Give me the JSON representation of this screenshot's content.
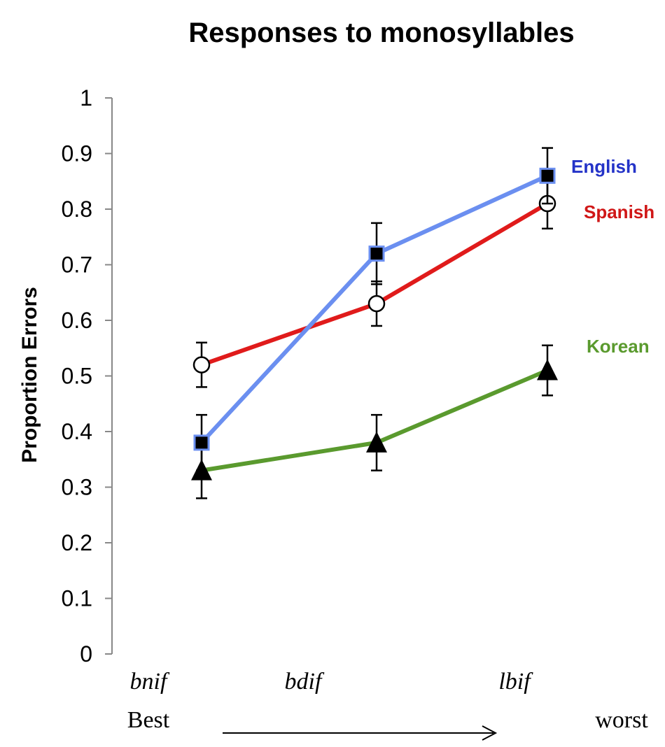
{
  "chart_data": {
    "type": "line",
    "title": "Responses to monosyllables",
    "ylabel": "Proportion Errors",
    "xlabel": "",
    "ylim": [
      0,
      1
    ],
    "yticks": [
      "0",
      "0.1",
      "0.2",
      "0.3",
      "0.4",
      "0.5",
      "0.6",
      "0.7",
      "0.8",
      "0.9",
      "1"
    ],
    "categories": [
      "bnif",
      "bdif",
      "lbif"
    ],
    "x_extremes": {
      "left": "Best",
      "right": "worst"
    },
    "grid": false,
    "series": [
      {
        "name": "English",
        "color": "#6b8ff0",
        "label_color": "#2433c8",
        "marker": "square",
        "values": [
          0.38,
          0.72,
          0.86
        ],
        "error": [
          0.05,
          0.055,
          0.05
        ]
      },
      {
        "name": "Spanish",
        "color": "#e01b1b",
        "label_color": "#d01717",
        "marker": "circle",
        "values": [
          0.52,
          0.63,
          0.81
        ],
        "error": [
          0.04,
          0.04,
          0.045
        ]
      },
      {
        "name": "Korean",
        "color": "#5a9a2e",
        "label_color": "#5a9a2e",
        "marker": "triangle",
        "values": [
          0.33,
          0.38,
          0.51
        ],
        "error": [
          0.05,
          0.05,
          0.045
        ]
      }
    ]
  }
}
